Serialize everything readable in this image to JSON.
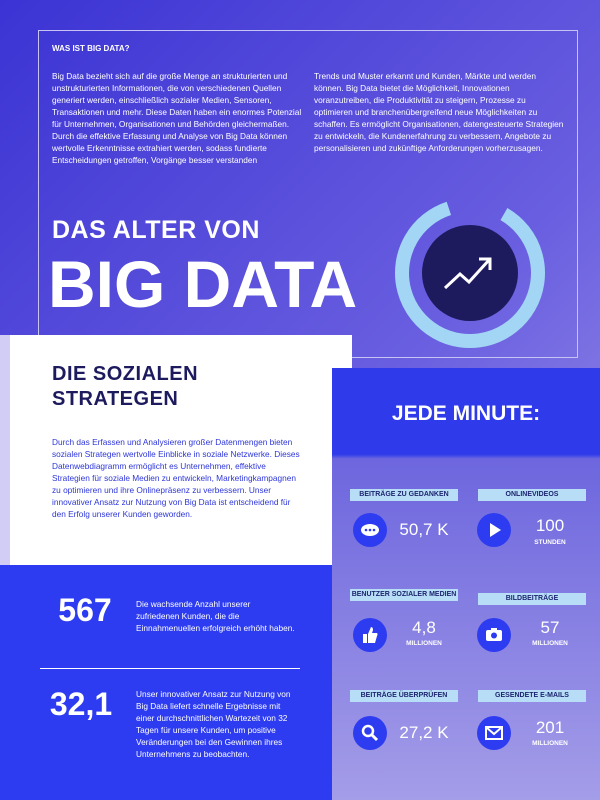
{
  "intro": {
    "heading": "WAS IST BIG DATA?",
    "paragraphs": [
      "Big Data bezieht sich auf die große Menge an strukturierten und unstrukturierten Informationen, die von verschiedenen Quellen generiert werden, einschließlich sozialer Medien, Sensoren, Transaktionen und mehr. Diese Daten haben ein enormes Potenzial für Unternehmen, Organisationen und Behörden gleichermaßen. Durch die effektive Erfassung und Analyse von Big Data können wertvolle Erkenntnisse extrahiert werden, sodass fundierte Entscheidungen getroffen, Vorgänge besser verstanden",
      "Trends und Muster erkannt und Kunden, Märkte und werden können. Big Data bietet die Möglichkeit, Innovationen voranzutreiben, die Produktivität zu steigern, Prozesse zu optimieren und branchenübergreifend neue Möglichkeiten zu schaffen. Es ermöglicht Organisationen, datengesteuerte Strategien zu entwickeln, die Kundenerfahrung zu verbessern, Angebote zu personalisieren und zukünftige Anforderungen vorherzusagen."
    ]
  },
  "hero": {
    "line1": "DAS ALTER VON",
    "line2": "BIG DATA"
  },
  "strategists": {
    "title": "DIE SOZIALEN STRATEGEN",
    "text": "Durch das Erfassen und Analysieren großer Datenmengen bieten sozialen Strategen wertvolle Einblicke in soziale Netzwerke. Dieses Datenwebdiagramm ermöglicht es Unternehmen, effektive Strategien für soziale Medien zu entwickeln, Marketingkampagnen zu optimieren und ihre Onlinepräsenz zu verbessern. Unser innovativer Ansatz zur Nutzung von Big Data ist entscheidend für den Erfolg unserer Kunden geworden."
  },
  "highlights": [
    {
      "value": "567",
      "text": "Die wachsende Anzahl unserer zufriedenen Kunden, die die Einnahmenuellen erfolgreich erhöht haben."
    },
    {
      "value": "32,1",
      "text": "Unser innovativer Ansatz zur Nutzung von Big Data liefert schnelle Ergebnisse mit einer durchschnittlichen Wartezeit von 32 Tagen für unsere Kunden, um positive Veränderungen bei den Gewinnen ihres Unternehmens zu beobachten."
    }
  ],
  "per_minute": {
    "title": "JEDE MINUTE:",
    "items": [
      {
        "label": "BEITRÄGE ZU GEDANKEN",
        "value": "50,7 K"
      },
      {
        "label": "ONLINEVIDEOS",
        "value": "100",
        "unit": "STUNDEN"
      },
      {
        "label": "BENUTZER SOZIALER MEDIEN",
        "value": "4,8",
        "unit": "MILLIONEN"
      },
      {
        "label": "BILDBEITRÄGE",
        "value": "57",
        "unit": "MILLIONEN"
      },
      {
        "label": "BEITRÄGE ÜBERPRÜFEN",
        "value": "27,2 K"
      },
      {
        "label": "GESENDETE E-MAILS",
        "value": "201",
        "unit": "MILLIONEN"
      }
    ]
  }
}
